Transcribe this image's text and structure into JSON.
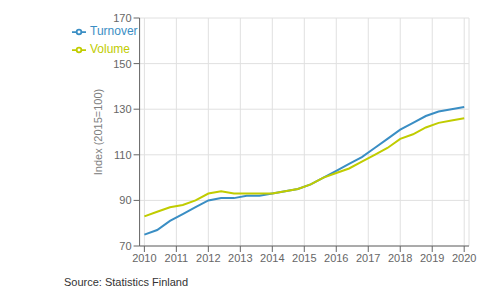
{
  "chart_data": {
    "type": "line",
    "y_label": "Index (2015=100)",
    "annotations": [
      "Source: Statistics Finland"
    ],
    "x": [
      2010,
      2010.4,
      2010.8,
      2011.2,
      2011.6,
      2012,
      2012.4,
      2012.8,
      2013.2,
      2013.6,
      2014,
      2014.4,
      2014.8,
      2015.2,
      2015.6,
      2016,
      2016.4,
      2016.8,
      2017.2,
      2017.6,
      2018,
      2018.4,
      2018.8,
      2019.2,
      2019.6,
      2020
    ],
    "series": [
      {
        "name": "Turnover",
        "color": "#3a8ec4",
        "values": [
          75,
          77,
          81,
          84,
          87,
          90,
          91,
          91,
          92,
          92,
          93,
          94,
          95,
          97,
          100,
          103,
          106,
          109,
          113,
          117,
          121,
          124,
          127,
          129,
          130,
          131
        ]
      },
      {
        "name": "Volume",
        "color": "#c0cc00",
        "values": [
          83,
          85,
          87,
          88,
          90,
          93,
          94,
          93,
          93,
          93,
          93,
          94,
          95,
          97,
          100,
          102,
          104,
          107,
          110,
          113,
          117,
          119,
          122,
          124,
          125,
          126
        ]
      }
    ],
    "xlim": [
      2009.85,
      2020.15
    ],
    "ylim": [
      70,
      170
    ],
    "xticks": [
      2010,
      2011,
      2012,
      2013,
      2014,
      2015,
      2016,
      2017,
      2018,
      2019,
      2020
    ],
    "yticks": [
      70,
      90,
      110,
      130,
      150,
      170
    ],
    "grid": true,
    "legend": "upper left"
  }
}
